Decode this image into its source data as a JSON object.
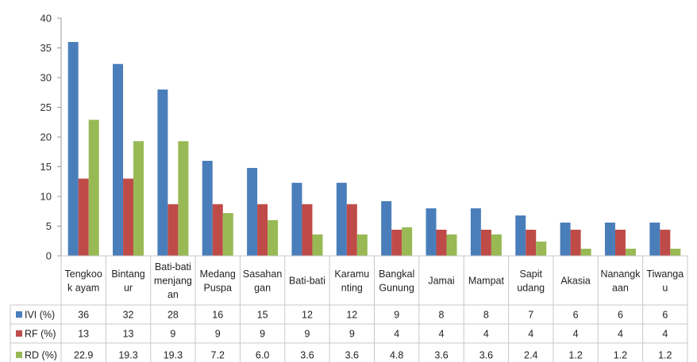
{
  "chart_data": {
    "type": "bar",
    "categories": [
      [
        "Tengkoo",
        "k ayam"
      ],
      [
        "Bintang",
        "ur"
      ],
      [
        "Bati-bati",
        "menjang",
        "an"
      ],
      [
        "Medang",
        "Puspa"
      ],
      [
        "Sasahan",
        "gan"
      ],
      [
        "Bati-bati"
      ],
      [
        "Karamu",
        "nting"
      ],
      [
        "Bangkal",
        "Gunung"
      ],
      [
        "Jamai"
      ],
      [
        "Mampat"
      ],
      [
        "Sapit",
        "udang"
      ],
      [
        "Akasia"
      ],
      [
        "Nanangk",
        "aan"
      ],
      [
        "Tiwanga",
        "u"
      ]
    ],
    "series": [
      {
        "name": "IVI (%)",
        "color": "#4A7EBB",
        "values": [
          36,
          32.3,
          28,
          16,
          14.8,
          12.3,
          12.3,
          9.2,
          8,
          8,
          6.8,
          5.6,
          5.6,
          5.6
        ],
        "table": [
          "36",
          "32",
          "28",
          "16",
          "15",
          "12",
          "12",
          "9",
          "8",
          "8",
          "7",
          "6",
          "6",
          "6"
        ]
      },
      {
        "name": "RF (%)",
        "color": "#BE4B48",
        "values": [
          13,
          13,
          8.7,
          8.7,
          8.7,
          8.7,
          8.7,
          4.4,
          4.4,
          4.4,
          4.4,
          4.4,
          4.4,
          4.4
        ],
        "table": [
          "13",
          "13",
          "9",
          "9",
          "9",
          "9",
          "9",
          "4",
          "4",
          "4",
          "4",
          "4",
          "4",
          "4"
        ]
      },
      {
        "name": "RD (%)",
        "color": "#98B954",
        "values": [
          22.9,
          19.3,
          19.3,
          7.2,
          6.0,
          3.6,
          3.6,
          4.8,
          3.6,
          3.6,
          2.4,
          1.2,
          1.2,
          1.2
        ],
        "table": [
          "22.9",
          "19.3",
          "19.3",
          "7.2",
          "6.0",
          "3.6",
          "3.6",
          "4.8",
          "3.6",
          "3.6",
          "2.4",
          "1.2",
          "1.2",
          "1.2"
        ]
      }
    ],
    "yticks": [
      0,
      5,
      10,
      15,
      20,
      25,
      30,
      35,
      40
    ],
    "ylim": [
      0,
      40
    ],
    "grid": false,
    "legend": "data-table"
  }
}
